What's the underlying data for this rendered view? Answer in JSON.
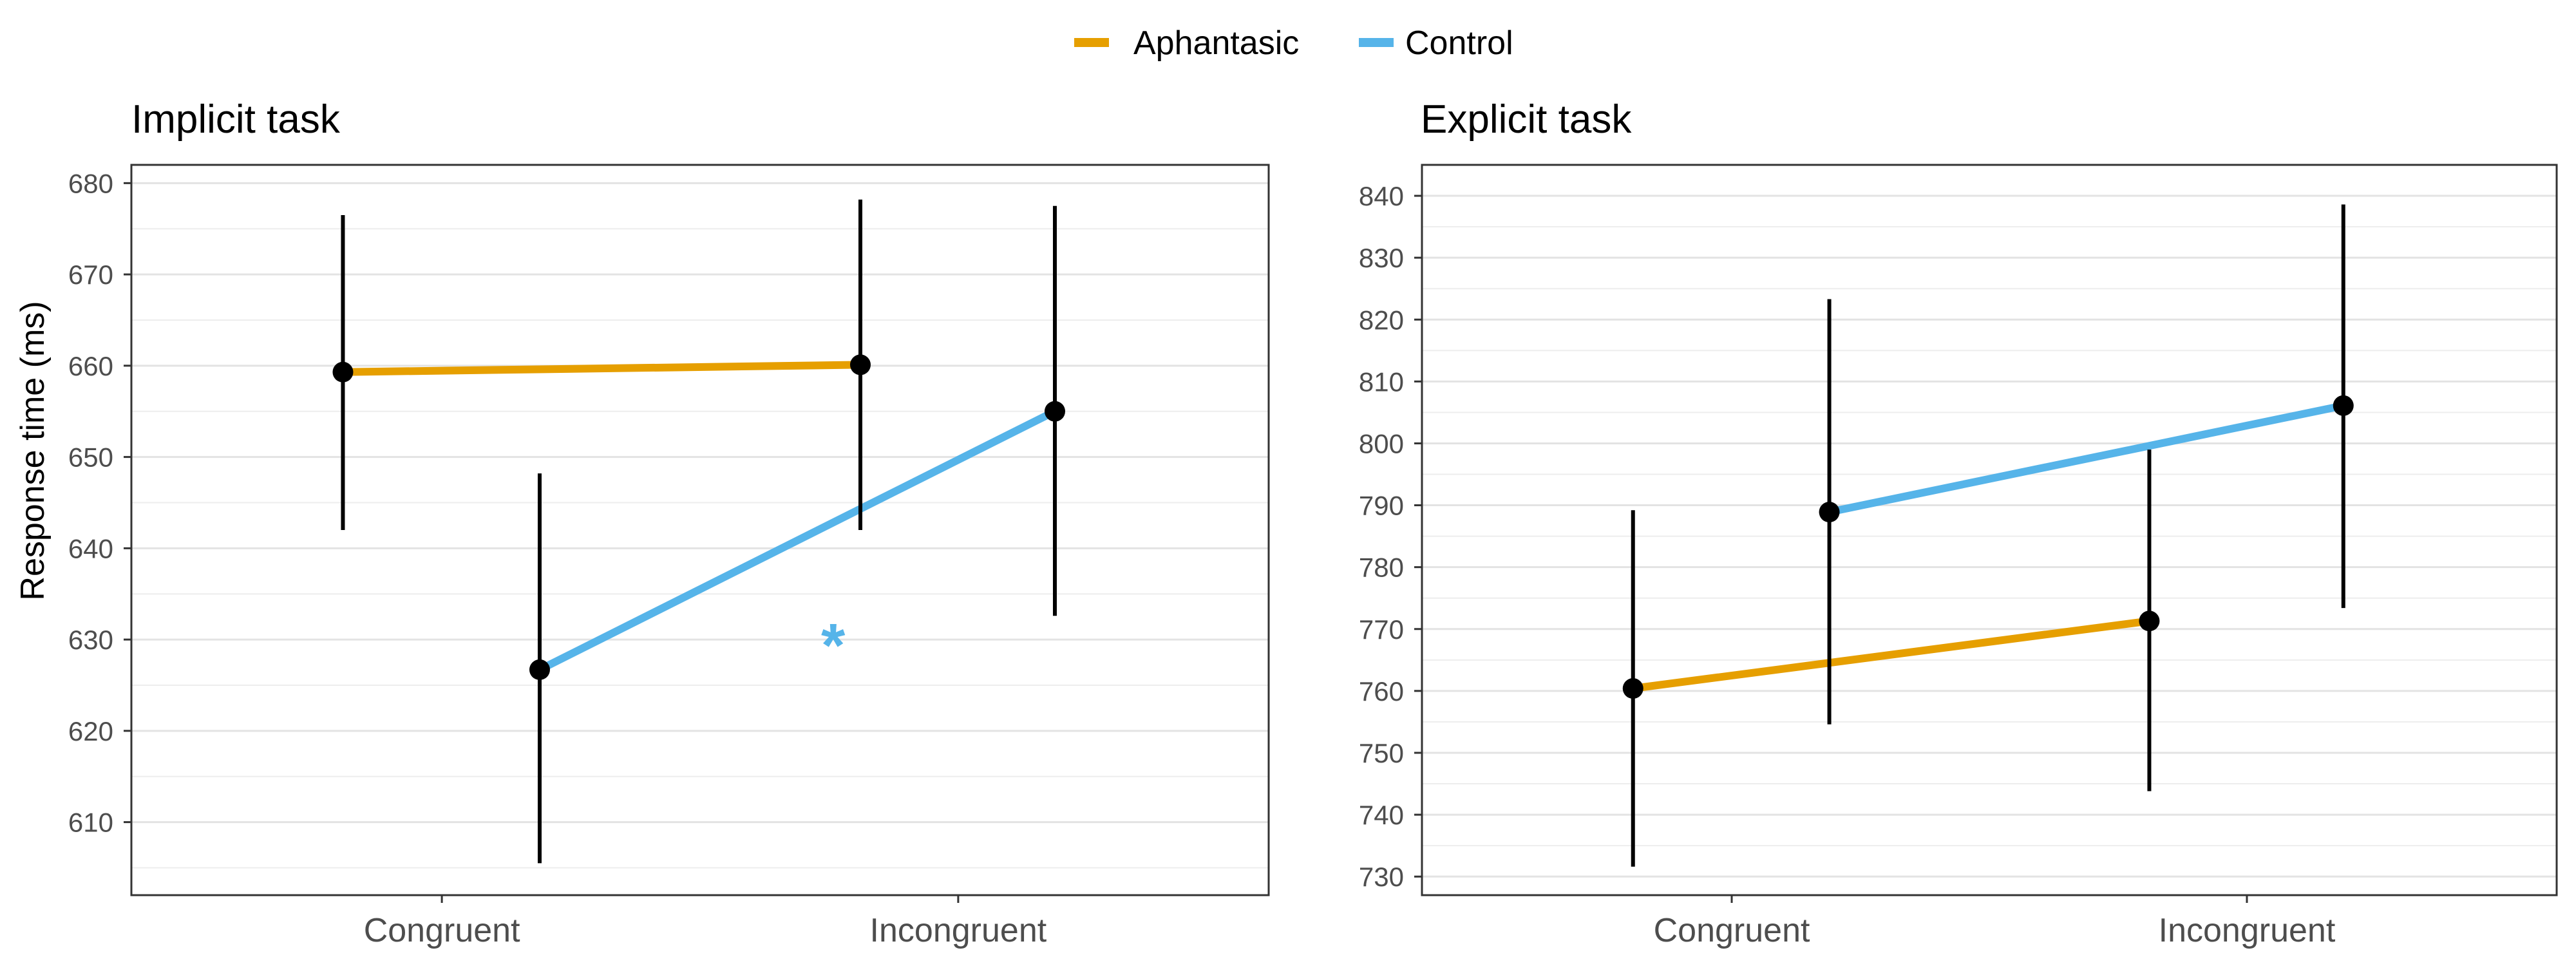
{
  "legend": [
    {
      "name": "Aphantasic",
      "color": "#E69F00"
    },
    {
      "name": "Control",
      "color": "#56B4E9"
    }
  ],
  "ylabel": "Response time (ms)",
  "chart_data": [
    {
      "type": "line",
      "title": "Implicit task",
      "categories": [
        "Congruent",
        "Incongruent"
      ],
      "ylabel": "Response time (ms)",
      "ylim": [
        602,
        682
      ],
      "yticks": [
        610,
        620,
        630,
        640,
        650,
        660,
        670,
        680
      ],
      "grid": true,
      "series": [
        {
          "name": "Aphantasic",
          "color": "#E69F00",
          "values": [
            659.3,
            660.1
          ],
          "err_low": [
            642.0,
            642.0
          ],
          "err_high": [
            676.5,
            678.2
          ]
        },
        {
          "name": "Control",
          "color": "#56B4E9",
          "values": [
            626.7,
            655.0
          ],
          "err_low": [
            605.5,
            632.6
          ],
          "err_high": [
            648.2,
            677.5
          ]
        }
      ],
      "annotations": [
        {
          "text": "*",
          "color": "#56B4E9"
        }
      ]
    },
    {
      "type": "line",
      "title": "Explicit task",
      "categories": [
        "Congruent",
        "Incongruent"
      ],
      "ylabel": "",
      "ylim": [
        727,
        845
      ],
      "yticks": [
        730,
        740,
        750,
        760,
        770,
        780,
        790,
        800,
        810,
        820,
        830,
        840
      ],
      "grid": true,
      "series": [
        {
          "name": "Aphantasic",
          "color": "#E69F00",
          "values": [
            760.4,
            771.3
          ],
          "err_low": [
            731.6,
            743.8
          ],
          "err_high": [
            789.2,
            799.0
          ]
        },
        {
          "name": "Control",
          "color": "#56B4E9",
          "values": [
            788.9,
            806.1
          ],
          "err_low": [
            754.6,
            773.4
          ],
          "err_high": [
            823.3,
            838.6
          ]
        }
      ],
      "annotations": []
    }
  ]
}
